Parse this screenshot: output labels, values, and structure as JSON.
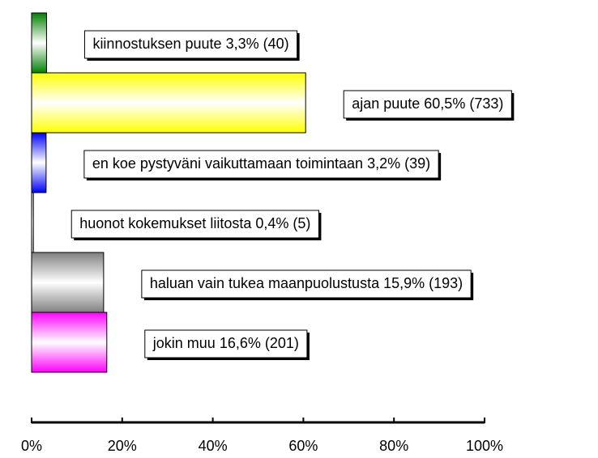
{
  "chart_data": {
    "type": "hbar",
    "categories": [
      "kiinnostuksen puute",
      "ajan puute",
      "en koe pystyväni vaikuttamaan toimintaan",
      "huonot kokemukset liitosta",
      "haluan vain tukea maanpuolustusta",
      "jokin muu"
    ],
    "values": [
      3.3,
      60.5,
      3.2,
      0.4,
      15.9,
      16.6
    ],
    "value_labels": [
      "3,3% (40)",
      "60,5% (733)",
      "3,2% (39)",
      "0,4% (5)",
      "15,9% (193)",
      "16,6% (201)"
    ],
    "colors": [
      "#008000",
      "#ffff00",
      "#0000ff",
      "#c8c8c8",
      "#808080",
      "#ff00ff"
    ],
    "xlim": [
      0,
      100
    ],
    "xticks": [
      {
        "value": 0,
        "label": "0%"
      },
      {
        "value": 20,
        "label": "20%"
      },
      {
        "value": 40,
        "label": "40%"
      },
      {
        "value": 60,
        "label": "60%"
      },
      {
        "value": 80,
        "label": "80%"
      },
      {
        "value": 100,
        "label": "100%"
      }
    ]
  }
}
